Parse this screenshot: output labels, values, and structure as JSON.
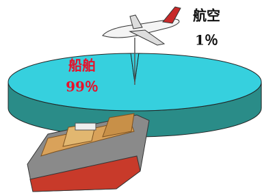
{
  "chart_data": {
    "type": "pie",
    "categories": [
      "船舶",
      "航空"
    ],
    "values": [
      99,
      1
    ],
    "value_labels": [
      "99％",
      "1％"
    ],
    "colors": [
      "#36d0de",
      "#36d0de"
    ],
    "label_colors": [
      "#e8102a",
      "#111111"
    ]
  }
}
